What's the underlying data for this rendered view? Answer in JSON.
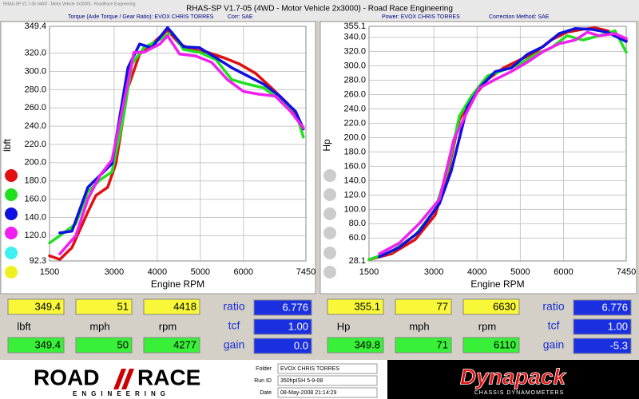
{
  "window_title": "RHAS-SP V1.7-05   (4WD - Motor Vehicle 2x3000) - Road Race Engineering",
  "app_caption": "RHAS-SP V1.7-05   (4WD - Motor Vehicle 2x3000) - RoadRace Engineering",
  "chart_data": [
    {
      "type": "line",
      "title": "Torque (Axle Torque / Gear Ratio): EVOX CHRIS TORRES",
      "correction": "Corr: SAE",
      "x_label": "Engine RPM",
      "y_label": "lbft",
      "grid": true,
      "xlim": [
        1500,
        7450
      ],
      "xticks": [
        1500,
        3000,
        4000,
        5000,
        6000,
        7450
      ],
      "ylim": [
        92.3,
        349.4
      ],
      "yticks": [
        92.3,
        {
          "value": 120,
          "label": "120.0"
        },
        {
          "value": 140,
          "label": "140.0"
        },
        {
          "value": 160,
          "label": "160.0"
        },
        {
          "value": 180,
          "label": "180.0"
        },
        {
          "value": 200,
          "label": "200.0"
        },
        {
          "value": 220,
          "label": "220.0"
        },
        {
          "value": 240,
          "label": "240.0"
        },
        {
          "value": 260,
          "label": "260.0"
        },
        {
          "value": 280,
          "label": "280.0"
        },
        {
          "value": 300,
          "label": "300.0"
        },
        {
          "value": 320,
          "label": "320.0"
        },
        349.4
      ],
      "series": [
        {
          "color": "#e01010",
          "x": [
            1500,
            1740,
            2020,
            2390,
            2575,
            2850,
            3040,
            3320,
            3590,
            3870,
            4240,
            4520,
            4800,
            5170,
            5540,
            5910,
            6280,
            6650,
            7020,
            7390
          ],
          "values": [
            98,
            94,
            107,
            146,
            164,
            173,
            199,
            282,
            319,
            330,
            345,
            330,
            324,
            321,
            315,
            308,
            298,
            282,
            265,
            238
          ]
        },
        {
          "color": "#20e020",
          "x": [
            1500,
            1740,
            2110,
            2390,
            2670,
            2950,
            3220,
            3410,
            3690,
            4060,
            4340,
            4610,
            4980,
            5360,
            5730,
            6100,
            6470,
            6840,
            7210,
            7390
          ],
          "values": [
            112,
            120,
            133,
            168,
            181,
            190,
            251,
            308,
            326,
            335,
            343,
            324,
            321,
            313,
            291,
            286,
            282,
            269,
            256,
            228
          ]
        },
        {
          "color": "#1010e0",
          "x": [
            1740,
            2020,
            2390,
            2670,
            2950,
            3320,
            3590,
            3870,
            4240,
            4610,
            4980,
            5360,
            5730,
            6100,
            6470,
            6840,
            7210,
            7390
          ],
          "values": [
            123,
            125,
            173,
            186,
            199,
            304,
            330,
            326,
            348,
            327,
            326,
            315,
            304,
            295,
            286,
            273,
            256,
            237
          ]
        },
        {
          "color": "#f020f0",
          "x": [
            1740,
            2110,
            2390,
            2670,
            2950,
            3220,
            3460,
            3690,
            4060,
            4240,
            4520,
            4890,
            5260,
            5630,
            6000,
            6370,
            6740,
            7100,
            7390
          ],
          "values": [
            100,
            120,
            160,
            186,
            203,
            265,
            321,
            321,
            330,
            339,
            319,
            317,
            310,
            291,
            278,
            275,
            273,
            256,
            238
          ]
        }
      ]
    },
    {
      "type": "line",
      "title": "Power: EVOX CHRIS TORRES",
      "correction": "Correction Method: SAE",
      "x_label": "Engine RPM",
      "y_label": "Hp",
      "grid": true,
      "xlim": [
        1500,
        7450
      ],
      "xticks": [
        1500,
        3000,
        4000,
        5000,
        6000,
        7450
      ],
      "ylim": [
        28.1,
        355.1
      ],
      "yticks": [
        28.1,
        {
          "value": 60,
          "label": "60.0"
        },
        {
          "value": 80,
          "label": "80.0"
        },
        {
          "value": 100,
          "label": "100.0"
        },
        {
          "value": 120,
          "label": "120.0"
        },
        {
          "value": 140,
          "label": "140.0"
        },
        {
          "value": 160,
          "label": "160.0"
        },
        {
          "value": 180,
          "label": "180.0"
        },
        {
          "value": 200,
          "label": "200.0"
        },
        {
          "value": 220,
          "label": "220.0"
        },
        {
          "value": 240,
          "label": "240.0"
        },
        {
          "value": 260,
          "label": "260.0"
        },
        {
          "value": 280,
          "label": "280.0"
        },
        {
          "value": 300,
          "label": "300.0"
        },
        {
          "value": 320,
          "label": "320.0"
        },
        {
          "value": 340,
          "label": "340.0"
        },
        355.1
      ],
      "series": [
        {
          "color": "#e01010",
          "x": [
            1500,
            2020,
            2570,
            3030,
            3310,
            3590,
            3870,
            4240,
            4610,
            4980,
            5350,
            5710,
            6080,
            6450,
            6730,
            7010,
            7450
          ],
          "values": [
            30,
            38,
            58,
            92,
            147,
            225,
            253,
            281,
            297,
            308,
            319,
            336,
            347,
            351,
            353,
            349,
            336
          ]
        },
        {
          "color": "#20e020",
          "x": [
            1500,
            2020,
            2570,
            3030,
            3310,
            3590,
            3870,
            4240,
            4610,
            4980,
            5350,
            5710,
            6080,
            6450,
            6820,
            7190,
            7450
          ],
          "values": [
            30,
            41,
            64,
            100,
            153,
            230,
            258,
            286,
            294,
            302,
            316,
            325,
            342,
            336,
            342,
            349,
            319
          ]
        },
        {
          "color": "#1010e0",
          "x": [
            1740,
            2200,
            2660,
            3130,
            3400,
            3770,
            4050,
            4420,
            4790,
            5160,
            5530,
            5900,
            6270,
            6640,
            7010,
            7450
          ],
          "values": [
            34,
            47,
            69,
            108,
            153,
            242,
            269,
            292,
            297,
            316,
            327,
            345,
            352,
            351,
            347,
            334
          ]
        },
        {
          "color": "#f020f0",
          "x": [
            1740,
            2200,
            2660,
            3130,
            3460,
            3770,
            4050,
            4420,
            4790,
            5160,
            5530,
            5900,
            6270,
            6550,
            6820,
            7190,
            7450
          ],
          "values": [
            38,
            53,
            80,
            114,
            197,
            236,
            269,
            281,
            292,
            305,
            320,
            331,
            336,
            347,
            342,
            345,
            338
          ]
        }
      ]
    }
  ],
  "readouts": [
    {
      "peak": [
        "349.4",
        "51",
        "4418"
      ],
      "units": [
        "lbft",
        "mph",
        "rpm"
      ],
      "current": [
        "349.4",
        "50",
        "4277"
      ],
      "params": [
        {
          "label": "ratio",
          "value": "6.776"
        },
        {
          "label": "tcf",
          "value": "1.00"
        },
        {
          "label": "gain",
          "value": "0.0"
        }
      ]
    },
    {
      "peak": [
        "355.1",
        "77",
        "6630"
      ],
      "units": [
        "Hp",
        "mph",
        "rpm"
      ],
      "current": [
        "349.8",
        "71",
        "6110"
      ],
      "params": [
        {
          "label": "ratio",
          "value": "6.776"
        },
        {
          "label": "tcf",
          "value": "1.00"
        },
        {
          "label": "gain",
          "value": "-5.3"
        }
      ]
    }
  ],
  "footer": {
    "logo_road": "ROAD",
    "logo_race": "RACE",
    "logo_sub": "ENGINEERING",
    "info": [
      {
        "label": "Folder",
        "value": "EVOX CHRIS TORRES"
      },
      {
        "label": "Run ID",
        "value": "350hpISH 5-9-08"
      },
      {
        "label": "Date",
        "value": "08-May-2008  21:14:29"
      }
    ],
    "brand": "Dynapack",
    "brand_sub": "CHASSIS DYNAMOMETERS"
  }
}
